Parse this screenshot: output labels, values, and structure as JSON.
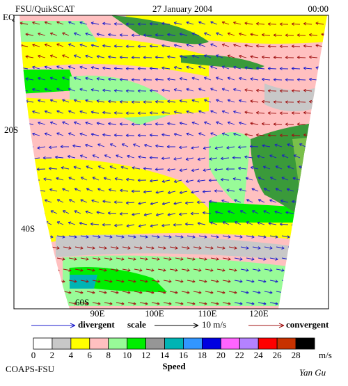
{
  "header": {
    "left": "FSU/QuikSCAT",
    "date": "27 January 2004",
    "time": "00:00"
  },
  "latitude_labels": [
    "EQ",
    "20S",
    "40S",
    "60S"
  ],
  "longitude_labels": [
    "90E",
    "100E",
    "110E",
    "120E"
  ],
  "legend": {
    "divergent": "divergent",
    "scale": "scale",
    "scale_value": "10 m/s",
    "convergent": "convergent",
    "divergent_color": "#1a1acc",
    "convergent_color": "#a01010"
  },
  "speed_scale": {
    "title": "Speed",
    "unit": "m/s",
    "ticks": [
      0,
      2,
      4,
      6,
      8,
      10,
      12,
      14,
      16,
      18,
      20,
      22,
      24,
      26,
      28
    ],
    "colors": [
      "#ffffff",
      "#c8c8c8",
      "#ffff00",
      "#ffc0c0",
      "#98fb98",
      "#00ee00",
      "#969696",
      "#00b4b4",
      "#3296ff",
      "#0000e0",
      "#ff64ff",
      "#b482ff",
      "#ff0000",
      "#c83200",
      "#000000"
    ]
  },
  "footer": {
    "left": "COAPS-FSU",
    "right": "Yan Gu"
  }
}
